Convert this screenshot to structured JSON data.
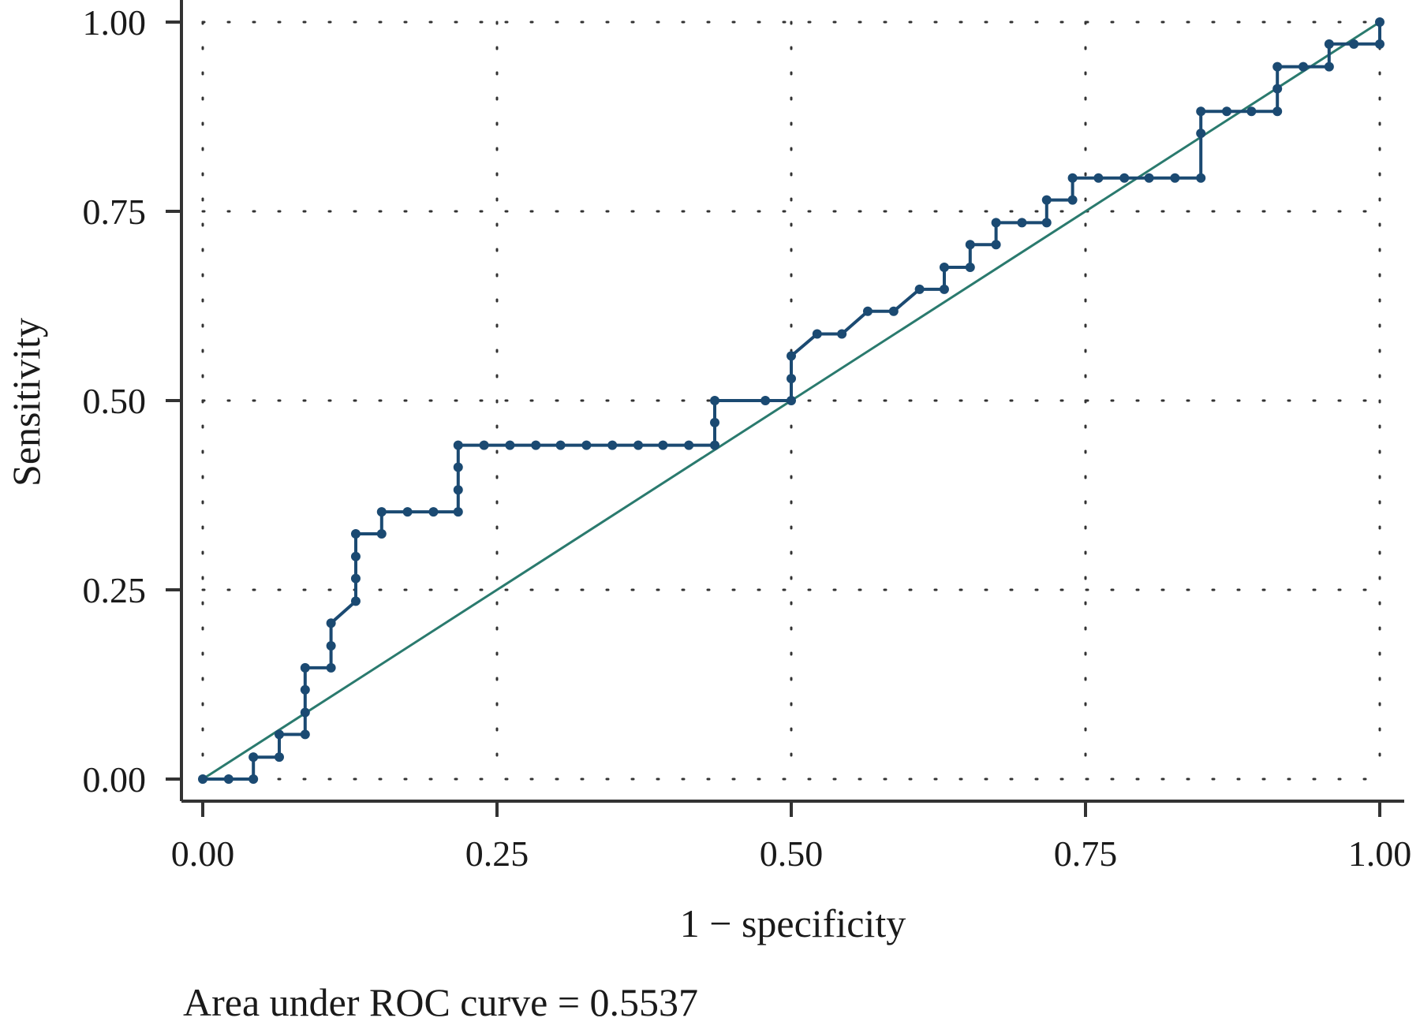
{
  "chart_data": {
    "type": "line",
    "title": "",
    "xlabel": "1 − specificity",
    "ylabel": "Sensitivity",
    "xlim": [
      0,
      1
    ],
    "ylim": [
      0,
      1
    ],
    "xticks": [
      "0.00",
      "0.25",
      "0.50",
      "0.75",
      "1.00"
    ],
    "yticks": [
      "0.00",
      "0.25",
      "0.50",
      "0.75",
      "1.00"
    ],
    "grid": true,
    "annotation": "Area under ROC curve = 0.5537",
    "colors": {
      "roc": "#1b4a72",
      "reference": "#2a7a6e",
      "axis": "#333333",
      "grid": "#333333"
    },
    "series": [
      {
        "x": [
          0.0,
          0.022,
          0.043,
          0.043,
          0.065,
          0.065,
          0.087,
          0.087,
          0.087,
          0.087,
          0.109,
          0.109,
          0.109,
          0.13,
          0.13,
          0.13,
          0.13,
          0.152,
          0.152,
          0.174,
          0.196,
          0.217,
          0.217,
          0.217,
          0.217,
          0.239,
          0.261,
          0.283,
          0.304,
          0.326,
          0.348,
          0.37,
          0.391,
          0.413,
          0.435,
          0.435,
          0.435,
          0.478,
          0.5,
          0.5,
          0.5,
          0.522,
          0.543,
          0.565,
          0.587,
          0.609,
          0.63,
          0.63,
          0.652,
          0.652,
          0.674,
          0.674,
          0.696,
          0.717,
          0.717,
          0.739,
          0.739,
          0.761,
          0.783,
          0.804,
          0.826,
          0.848,
          0.848,
          0.848,
          0.87,
          0.891,
          0.913,
          0.913,
          0.913,
          0.935,
          0.957,
          0.957,
          0.978,
          1.0,
          1.0
        ],
        "y": [
          0.0,
          0.0,
          0.0,
          0.029,
          0.029,
          0.059,
          0.059,
          0.088,
          0.118,
          0.147,
          0.147,
          0.176,
          0.206,
          0.235,
          0.265,
          0.294,
          0.324,
          0.324,
          0.353,
          0.353,
          0.353,
          0.353,
          0.382,
          0.412,
          0.441,
          0.441,
          0.441,
          0.441,
          0.441,
          0.441,
          0.441,
          0.441,
          0.441,
          0.441,
          0.441,
          0.471,
          0.5,
          0.5,
          0.5,
          0.529,
          0.559,
          0.588,
          0.588,
          0.618,
          0.618,
          0.647,
          0.647,
          0.676,
          0.676,
          0.706,
          0.706,
          0.735,
          0.735,
          0.735,
          0.765,
          0.765,
          0.794,
          0.794,
          0.794,
          0.794,
          0.794,
          0.794,
          0.853,
          0.882,
          0.882,
          0.882,
          0.882,
          0.912,
          0.941,
          0.941,
          0.941,
          0.971,
          0.971,
          0.971,
          1.0
        ]
      }
    ],
    "reference_line": {
      "x": [
        0,
        1
      ],
      "y": [
        0,
        1
      ]
    }
  }
}
